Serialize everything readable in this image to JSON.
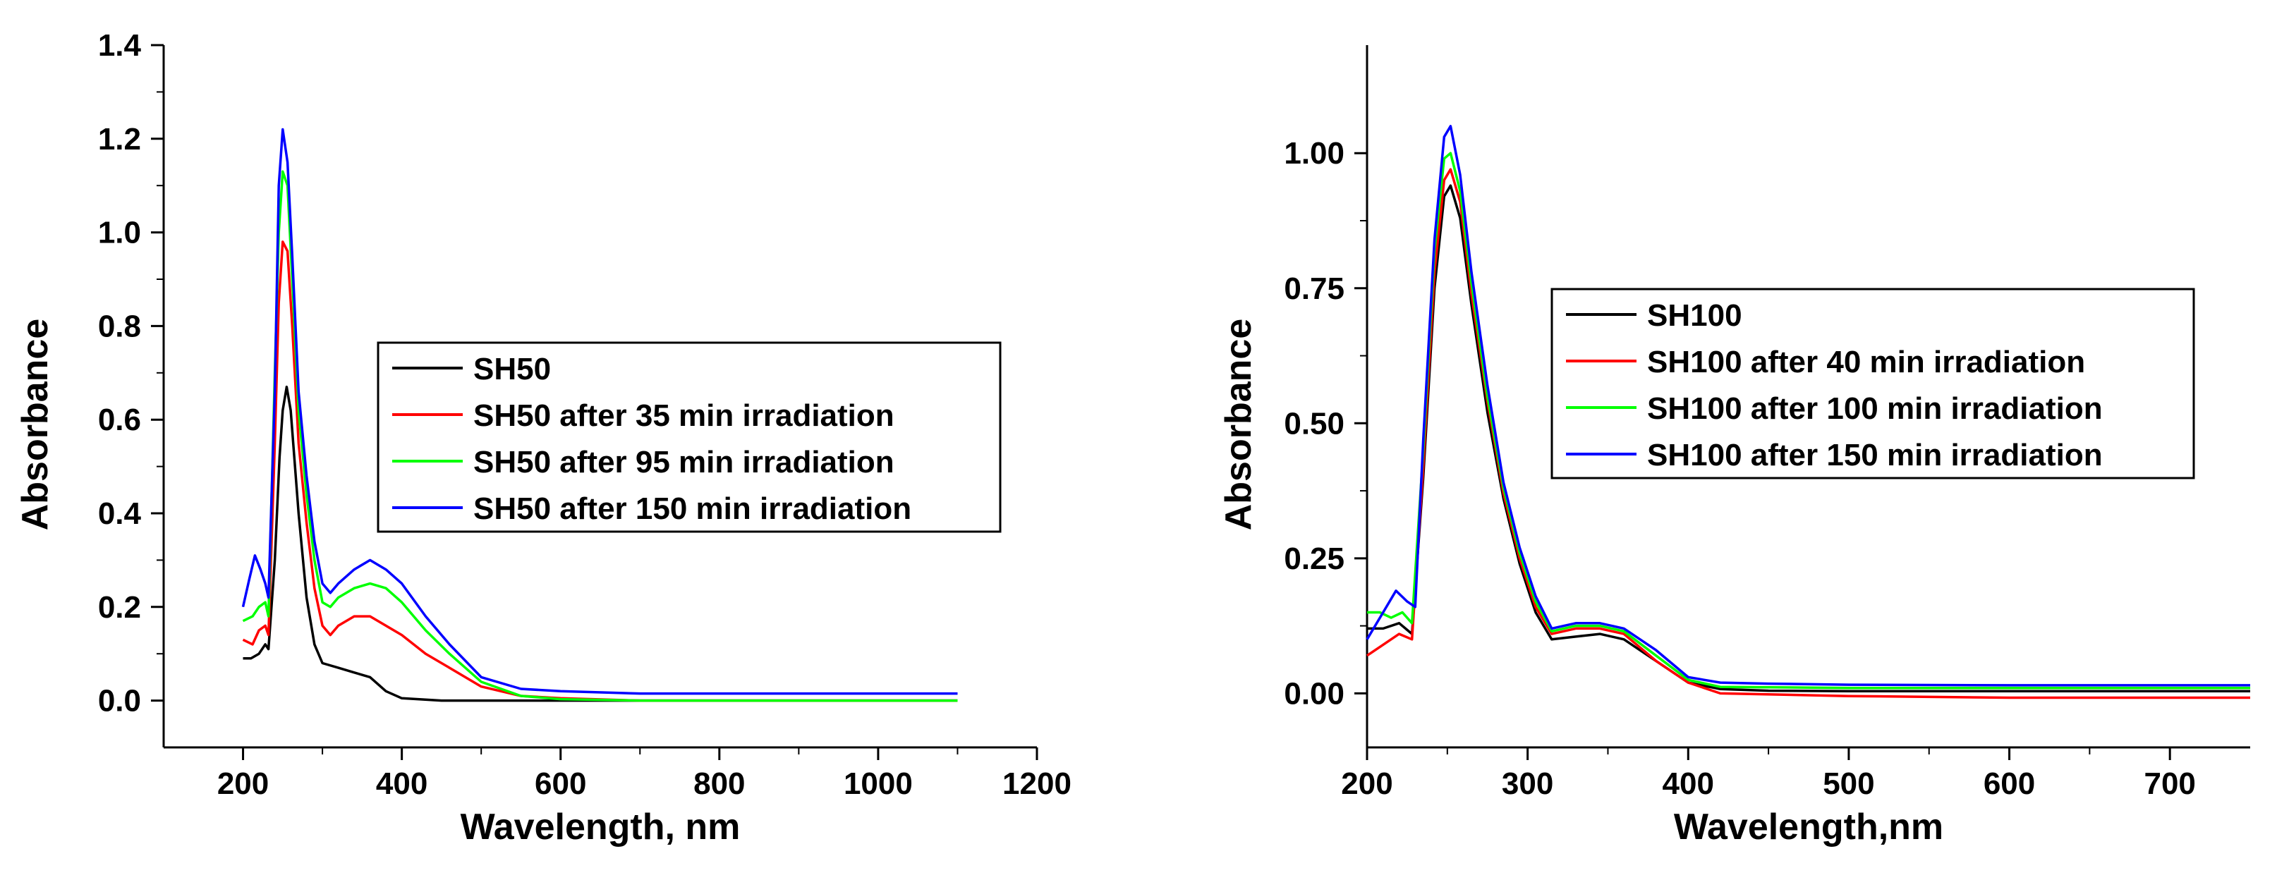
{
  "chart_data": [
    {
      "type": "line",
      "xlabel": "Wavelength, nm",
      "ylabel": "Absorbance",
      "xlim": [
        100,
        1200
      ],
      "ylim": [
        -0.1,
        1.4
      ],
      "xticks": [
        200,
        400,
        600,
        800,
        1000,
        1200
      ],
      "xtick_labels": [
        "200",
        "400",
        "600",
        "800",
        "1000",
        "1200"
      ],
      "yticks": [
        0.0,
        0.2,
        0.4,
        0.6,
        0.8,
        1.0,
        1.2,
        1.4
      ],
      "ytick_labels": [
        "0.0",
        "0.2",
        "0.4",
        "0.6",
        "0.8",
        "1.0",
        "1.2",
        "1.4"
      ],
      "legend_position": "center-right",
      "series": [
        {
          "name": "SH50",
          "color": "#000000",
          "points": [
            [
              200,
              0.09
            ],
            [
              210,
              0.09
            ],
            [
              220,
              0.1
            ],
            [
              228,
              0.12
            ],
            [
              232,
              0.11
            ],
            [
              240,
              0.3
            ],
            [
              246,
              0.52
            ],
            [
              250,
              0.62
            ],
            [
              255,
              0.67
            ],
            [
              260,
              0.62
            ],
            [
              270,
              0.4
            ],
            [
              280,
              0.22
            ],
            [
              290,
              0.12
            ],
            [
              300,
              0.08
            ],
            [
              320,
              0.07
            ],
            [
              340,
              0.06
            ],
            [
              360,
              0.05
            ],
            [
              380,
              0.02
            ],
            [
              400,
              0.005
            ],
            [
              450,
              0.0
            ],
            [
              600,
              0.0
            ],
            [
              1100,
              0.0
            ]
          ]
        },
        {
          "name": "SH50 after 35 min irradiation",
          "color": "#ff0000",
          "points": [
            [
              200,
              0.13
            ],
            [
              212,
              0.12
            ],
            [
              220,
              0.15
            ],
            [
              228,
              0.16
            ],
            [
              232,
              0.14
            ],
            [
              240,
              0.55
            ],
            [
              245,
              0.85
            ],
            [
              250,
              0.98
            ],
            [
              256,
              0.96
            ],
            [
              262,
              0.8
            ],
            [
              270,
              0.55
            ],
            [
              280,
              0.38
            ],
            [
              290,
              0.24
            ],
            [
              300,
              0.16
            ],
            [
              310,
              0.14
            ],
            [
              320,
              0.16
            ],
            [
              340,
              0.18
            ],
            [
              360,
              0.18
            ],
            [
              380,
              0.16
            ],
            [
              400,
              0.14
            ],
            [
              430,
              0.1
            ],
            [
              460,
              0.07
            ],
            [
              500,
              0.03
            ],
            [
              550,
              0.01
            ],
            [
              600,
              0.005
            ],
            [
              700,
              0.0
            ],
            [
              1100,
              0.0
            ]
          ]
        },
        {
          "name": "SH50 after 95 min irradiation",
          "color": "#00ff00",
          "points": [
            [
              200,
              0.17
            ],
            [
              212,
              0.18
            ],
            [
              220,
              0.2
            ],
            [
              228,
              0.21
            ],
            [
              232,
              0.18
            ],
            [
              240,
              0.7
            ],
            [
              245,
              1.0
            ],
            [
              250,
              1.13
            ],
            [
              256,
              1.1
            ],
            [
              262,
              0.9
            ],
            [
              270,
              0.62
            ],
            [
              280,
              0.44
            ],
            [
              290,
              0.3
            ],
            [
              300,
              0.21
            ],
            [
              310,
              0.2
            ],
            [
              320,
              0.22
            ],
            [
              340,
              0.24
            ],
            [
              360,
              0.25
            ],
            [
              380,
              0.24
            ],
            [
              400,
              0.21
            ],
            [
              430,
              0.15
            ],
            [
              460,
              0.1
            ],
            [
              500,
              0.04
            ],
            [
              550,
              0.01
            ],
            [
              600,
              0.003
            ],
            [
              700,
              0.0
            ],
            [
              1100,
              0.0
            ]
          ]
        },
        {
          "name": "SH50 after 150 min irradiation",
          "color": "#0000ff",
          "points": [
            [
              200,
              0.2
            ],
            [
              208,
              0.26
            ],
            [
              215,
              0.31
            ],
            [
              222,
              0.28
            ],
            [
              228,
              0.25
            ],
            [
              232,
              0.22
            ],
            [
              240,
              0.66
            ],
            [
              245,
              1.1
            ],
            [
              250,
              1.22
            ],
            [
              256,
              1.15
            ],
            [
              262,
              0.95
            ],
            [
              270,
              0.66
            ],
            [
              280,
              0.48
            ],
            [
              290,
              0.34
            ],
            [
              300,
              0.25
            ],
            [
              310,
              0.23
            ],
            [
              320,
              0.25
            ],
            [
              340,
              0.28
            ],
            [
              360,
              0.3
            ],
            [
              380,
              0.28
            ],
            [
              400,
              0.25
            ],
            [
              430,
              0.18
            ],
            [
              460,
              0.12
            ],
            [
              500,
              0.05
            ],
            [
              550,
              0.025
            ],
            [
              600,
              0.02
            ],
            [
              700,
              0.015
            ],
            [
              1100,
              0.015
            ]
          ]
        }
      ],
      "legend": [
        "SH50",
        "SH50 after 35 min irradiation",
        "SH50 after 95 min irradiation",
        "SH50 after 150 min irradiation"
      ]
    },
    {
      "type": "line",
      "xlabel": "Wavelength,nm",
      "ylabel": "Absorbance",
      "xlim": [
        200,
        750
      ],
      "ylim": [
        -0.1,
        1.2
      ],
      "xticks": [
        200,
        300,
        400,
        500,
        600,
        700
      ],
      "xtick_labels": [
        "200",
        "300",
        "400",
        "500",
        "600",
        "700"
      ],
      "yticks": [
        0.0,
        0.25,
        0.5,
        0.75,
        1.0
      ],
      "ytick_labels": [
        "0.00",
        "0.25",
        "0.50",
        "0.75",
        "1.00"
      ],
      "legend_position": "upper-right",
      "series": [
        {
          "name": "SH100",
          "color": "#000000",
          "points": [
            [
              200,
              0.12
            ],
            [
              210,
              0.12
            ],
            [
              220,
              0.13
            ],
            [
              228,
              0.11
            ],
            [
              235,
              0.4
            ],
            [
              242,
              0.75
            ],
            [
              248,
              0.92
            ],
            [
              252,
              0.94
            ],
            [
              258,
              0.88
            ],
            [
              265,
              0.72
            ],
            [
              275,
              0.52
            ],
            [
              285,
              0.36
            ],
            [
              295,
              0.24
            ],
            [
              305,
              0.15
            ],
            [
              315,
              0.1
            ],
            [
              330,
              0.105
            ],
            [
              345,
              0.11
            ],
            [
              360,
              0.1
            ],
            [
              380,
              0.06
            ],
            [
              400,
              0.02
            ],
            [
              420,
              0.008
            ],
            [
              450,
              0.005
            ],
            [
              500,
              0.004
            ],
            [
              600,
              0.004
            ],
            [
              750,
              0.004
            ]
          ]
        },
        {
          "name": "SH100 after 40 min irradiation",
          "color": "#ff0000",
          "points": [
            [
              200,
              0.07
            ],
            [
              210,
              0.09
            ],
            [
              220,
              0.11
            ],
            [
              228,
              0.1
            ],
            [
              235,
              0.42
            ],
            [
              242,
              0.78
            ],
            [
              248,
              0.95
            ],
            [
              252,
              0.97
            ],
            [
              258,
              0.91
            ],
            [
              265,
              0.74
            ],
            [
              275,
              0.54
            ],
            [
              285,
              0.37
            ],
            [
              295,
              0.25
            ],
            [
              305,
              0.16
            ],
            [
              315,
              0.11
            ],
            [
              330,
              0.12
            ],
            [
              345,
              0.12
            ],
            [
              360,
              0.11
            ],
            [
              380,
              0.06
            ],
            [
              400,
              0.02
            ],
            [
              420,
              0.0
            ],
            [
              500,
              -0.005
            ],
            [
              600,
              -0.008
            ],
            [
              750,
              -0.008
            ]
          ]
        },
        {
          "name": "SH100 after 100 min irradiation",
          "color": "#00ff00",
          "points": [
            [
              200,
              0.15
            ],
            [
              208,
              0.15
            ],
            [
              215,
              0.14
            ],
            [
              222,
              0.15
            ],
            [
              228,
              0.13
            ],
            [
              235,
              0.45
            ],
            [
              242,
              0.82
            ],
            [
              248,
              0.99
            ],
            [
              252,
              1.0
            ],
            [
              258,
              0.93
            ],
            [
              265,
              0.76
            ],
            [
              275,
              0.55
            ],
            [
              285,
              0.38
            ],
            [
              295,
              0.26
            ],
            [
              305,
              0.17
            ],
            [
              315,
              0.115
            ],
            [
              330,
              0.125
            ],
            [
              345,
              0.125
            ],
            [
              360,
              0.115
            ],
            [
              380,
              0.07
            ],
            [
              400,
              0.025
            ],
            [
              420,
              0.012
            ],
            [
              500,
              0.01
            ],
            [
              600,
              0.01
            ],
            [
              750,
              0.01
            ]
          ]
        },
        {
          "name": "SH100 after 150 min irradiation",
          "color": "#0000ff",
          "points": [
            [
              200,
              0.1
            ],
            [
              210,
              0.15
            ],
            [
              218,
              0.19
            ],
            [
              225,
              0.17
            ],
            [
              230,
              0.16
            ],
            [
              235,
              0.47
            ],
            [
              242,
              0.84
            ],
            [
              248,
              1.03
            ],
            [
              252,
              1.05
            ],
            [
              258,
              0.96
            ],
            [
              265,
              0.78
            ],
            [
              275,
              0.57
            ],
            [
              285,
              0.39
            ],
            [
              295,
              0.27
            ],
            [
              305,
              0.18
            ],
            [
              315,
              0.12
            ],
            [
              330,
              0.13
            ],
            [
              345,
              0.13
            ],
            [
              360,
              0.12
            ],
            [
              380,
              0.08
            ],
            [
              400,
              0.03
            ],
            [
              420,
              0.02
            ],
            [
              450,
              0.018
            ],
            [
              500,
              0.016
            ],
            [
              600,
              0.015
            ],
            [
              750,
              0.015
            ]
          ]
        }
      ],
      "legend": [
        "SH100",
        "SH100 after 40 min irradiation",
        "SH100 after 100 min irradiation",
        "SH100 after 150 min irradiation"
      ]
    }
  ]
}
